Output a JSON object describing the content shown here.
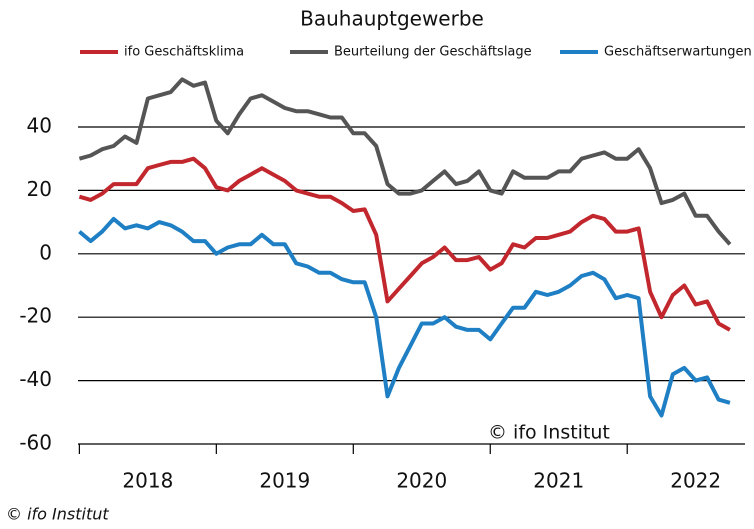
{
  "chart_data": {
    "type": "line",
    "title": "Bauhauptgewerbe",
    "x": [
      2018,
      2018.083,
      2018.167,
      2018.25,
      2018.333,
      2018.417,
      2018.5,
      2018.583,
      2018.667,
      2018.75,
      2018.833,
      2018.917,
      2019,
      2019.083,
      2019.167,
      2019.25,
      2019.333,
      2019.417,
      2019.5,
      2019.583,
      2019.667,
      2019.75,
      2019.833,
      2019.917,
      2020,
      2020.083,
      2020.167,
      2020.25,
      2020.333,
      2020.417,
      2020.5,
      2020.583,
      2020.667,
      2020.75,
      2020.833,
      2020.917,
      2021,
      2021.083,
      2021.167,
      2021.25,
      2021.333,
      2021.417,
      2021.5,
      2021.583,
      2021.667,
      2021.75,
      2021.833,
      2021.917,
      2022,
      2022.083,
      2022.167,
      2022.25,
      2022.333,
      2022.417,
      2022.5,
      2022.583,
      2022.667,
      2022.75
    ],
    "series": [
      {
        "name": "ifo Geschäftsklima",
        "color": "#c1272d",
        "values": [
          18,
          17,
          19,
          22,
          22,
          22,
          27,
          28,
          29,
          29,
          30,
          27,
          21,
          20,
          23,
          25,
          27,
          25,
          23,
          20,
          19,
          18,
          18,
          16,
          13.5,
          14,
          6,
          -15,
          -11,
          -7,
          -3,
          -1,
          2,
          -2,
          -2,
          -1,
          -5,
          -3,
          3,
          2,
          5,
          5,
          6,
          7,
          10,
          12,
          11,
          7,
          7,
          8,
          -12,
          -20,
          -13,
          -10,
          -16,
          -15,
          -22,
          -24
        ]
      },
      {
        "name": "Beurteilung der Geschäftslage",
        "color": "#555555",
        "values": [
          30,
          31,
          33,
          34,
          37,
          35,
          49,
          50,
          51,
          55,
          53,
          54,
          42,
          38,
          44,
          49,
          50,
          48,
          46,
          45,
          45,
          44,
          43,
          43,
          38,
          38,
          34,
          22,
          19,
          19,
          20,
          23,
          26,
          22,
          23,
          26,
          20,
          19,
          26,
          24,
          24,
          24,
          26,
          26,
          30,
          31,
          32,
          30,
          30,
          33,
          27,
          16,
          17,
          19,
          12,
          12,
          7,
          3
        ]
      },
      {
        "name": "Geschäftserwartungen",
        "color": "#1f7fc4",
        "values": [
          7,
          4,
          7,
          11,
          8,
          9,
          8,
          10,
          9,
          7,
          4,
          4,
          0,
          2,
          3,
          3,
          6,
          3,
          3,
          -3,
          -4,
          -6,
          -6,
          -8,
          -9,
          -9,
          -20,
          -45,
          -36,
          -29,
          -22,
          -22,
          -20,
          -23,
          -24,
          -24,
          -27,
          -22,
          -17,
          -17,
          -12,
          -13,
          -12,
          -10,
          -7,
          -6,
          -8,
          -14,
          -13,
          -14,
          -45,
          -51,
          -38,
          -36,
          -40,
          -39,
          -46,
          -47
        ]
      }
    ],
    "xlim": [
      2017.99,
      2022.86
    ],
    "xticks": [
      {
        "value": 2018.5,
        "label": "2018"
      },
      {
        "value": 2019.5,
        "label": "2019"
      },
      {
        "value": 2020.5,
        "label": "2020"
      },
      {
        "value": 2021.5,
        "label": "2021"
      },
      {
        "value": 2022.5,
        "label": "2022"
      }
    ],
    "ylim": [
      -60,
      60
    ],
    "yticks": [
      -60,
      -40,
      -20,
      0,
      20,
      40
    ],
    "grid": true,
    "legend": "top",
    "watermark": "© ifo Institut",
    "source": "© ifo Institut"
  }
}
